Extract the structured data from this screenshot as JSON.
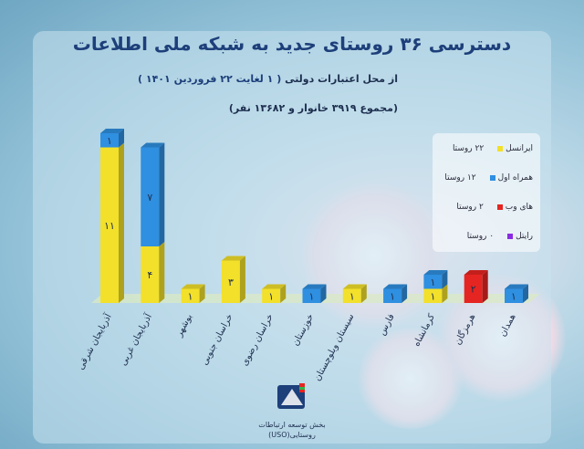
{
  "header": {
    "title_main": "دسترسی ۳۶ روستای جدید به شبکه ملی اطلاعات",
    "subtitle_prefix": "از محل اعتبارات دولتی",
    "subtitle_range": "( ۱ لغایت ۲۲ فروردین ۱۴۰۱ )",
    "totals": "(مجموع ۳۹۱۹ خانوار و ۱۳۶۸۲ نفر)"
  },
  "legend": {
    "items": [
      {
        "name": "ایرانسل",
        "value": "۲۲ روستا",
        "color": "#f2e02a"
      },
      {
        "name": "همراه اول",
        "value": "۱۲ روستا",
        "color": "#2f8fe0"
      },
      {
        "name": "های وب",
        "value": "۲ روستا",
        "color": "#e52521"
      },
      {
        "name": "رایتل",
        "value": "۰ روستا",
        "color": "#8a2be2"
      }
    ]
  },
  "logo": {
    "line1": "بخش توسعه ارتباطات",
    "line2": "روستایی(USO)"
  },
  "chart_data": {
    "type": "bar",
    "stacked": true,
    "categories": [
      "آذربایجان شرقی",
      "آذربایجان غربی",
      "بوشهر",
      "خراسان جنوبی",
      "خراسان رضوی",
      "خوزستان",
      "سیستان وبلوچستان",
      "فارس",
      "کرمانشاه",
      "هرمزگان",
      "همدان"
    ],
    "series": [
      {
        "name": "ایرانسل",
        "color": "#f2e02a",
        "values": [
          11,
          4,
          1,
          3,
          1,
          0,
          1,
          0,
          1,
          0,
          0
        ]
      },
      {
        "name": "همراه اول",
        "color": "#2f8fe0",
        "values": [
          1,
          7,
          0,
          0,
          0,
          1,
          0,
          1,
          1,
          0,
          1
        ]
      },
      {
        "name": "های وب",
        "color": "#e52521",
        "values": [
          0,
          0,
          0,
          0,
          0,
          0,
          0,
          0,
          0,
          2,
          0
        ]
      }
    ],
    "labels": [
      [
        "۱۱",
        "۱"
      ],
      [
        "۴",
        "۷"
      ],
      [
        "۱"
      ],
      [
        "۳"
      ],
      [
        "۱"
      ],
      [
        "۱"
      ],
      [
        "۱"
      ],
      [
        "۱"
      ],
      [
        "۱",
        "۱"
      ],
      [
        "۲"
      ],
      [
        "۱"
      ]
    ],
    "ylim": [
      0,
      12
    ]
  }
}
